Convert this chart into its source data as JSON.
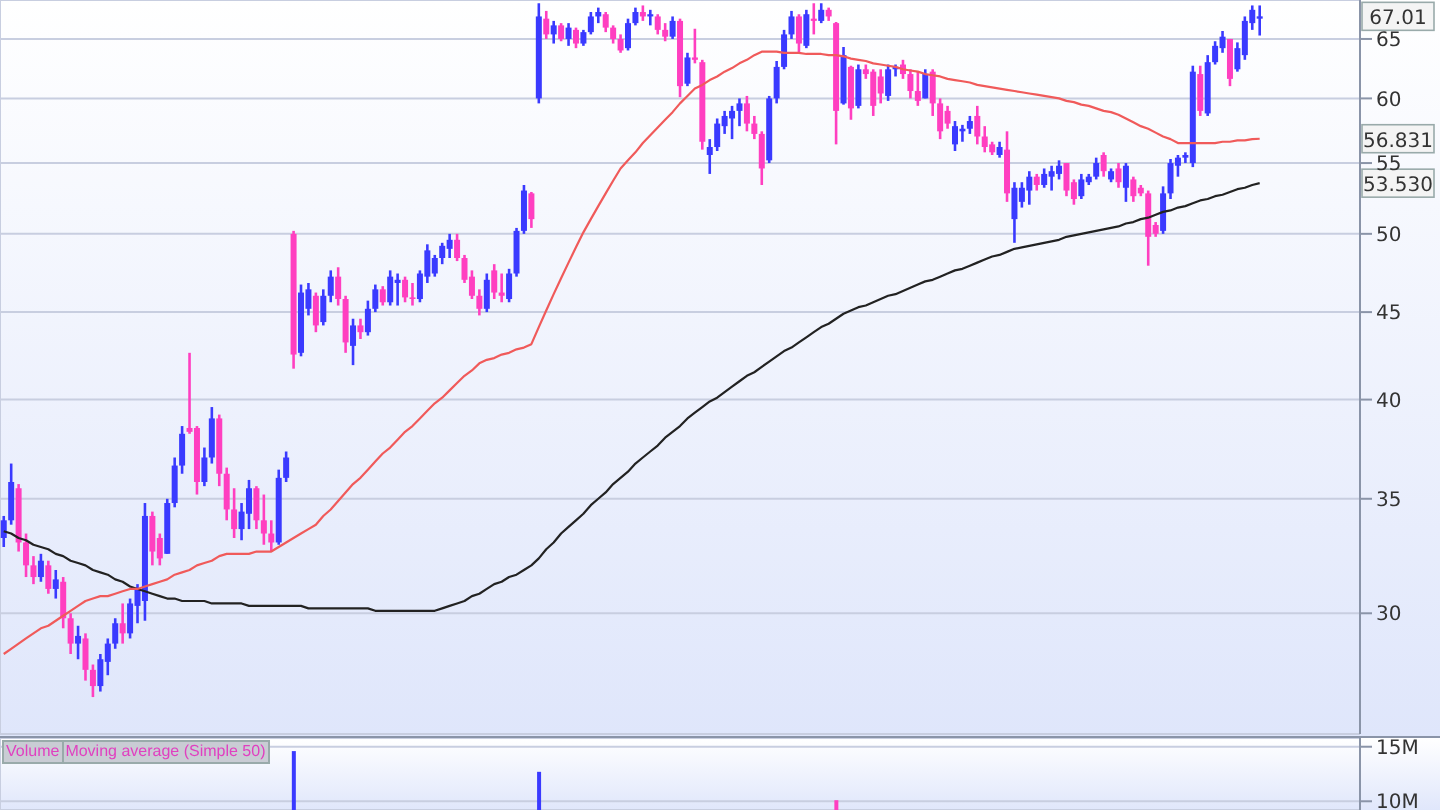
{
  "chart_data": [
    {
      "type": "candlestick",
      "categories": [
        null,
        null,
        null,
        null,
        null,
        null,
        null,
        null,
        null,
        null,
        null,
        null,
        null,
        null,
        null,
        null,
        null,
        null,
        null,
        null,
        null,
        null,
        null,
        null,
        null,
        null,
        null,
        null,
        null,
        null,
        null,
        null,
        null,
        null,
        null,
        null,
        null,
        null,
        null,
        null,
        null,
        null,
        null,
        null,
        null,
        null,
        null,
        null,
        null,
        null,
        null,
        null,
        null,
        null,
        null,
        null,
        null,
        null,
        null,
        null,
        null,
        null,
        null,
        null,
        null,
        null,
        null,
        null,
        null,
        null,
        null,
        null,
        null,
        null,
        null,
        null,
        null,
        null,
        null,
        null,
        null,
        null,
        null,
        null,
        null,
        null,
        null,
        null,
        null,
        null,
        null,
        null,
        null,
        null,
        null,
        null,
        null,
        null,
        null,
        null,
        null,
        null,
        null,
        null,
        null,
        null,
        null,
        null,
        null,
        null,
        null,
        null,
        null,
        null,
        null,
        null,
        null,
        null,
        null,
        null,
        null,
        null,
        null,
        null,
        null,
        null,
        null,
        null,
        null,
        null,
        null,
        null,
        null,
        null,
        null,
        null,
        null,
        null,
        null,
        null,
        null,
        null,
        null,
        null,
        null,
        null,
        null,
        null,
        null,
        null,
        null,
        null,
        null,
        null,
        null,
        null,
        null,
        null,
        null,
        null,
        null,
        null,
        null,
        null,
        null,
        null,
        null,
        null,
        null,
        null,
        null,
        null,
        null,
        null,
        null,
        null,
        null,
        null,
        null,
        null,
        null,
        null,
        null
      ],
      "ohlc": [
        [
          33.2,
          34.2,
          32.8,
          34.0
        ],
        [
          34.0,
          36.7,
          33.8,
          35.8
        ],
        [
          35.5,
          35.7,
          32.6,
          33.0
        ],
        [
          33.0,
          33.4,
          31.5,
          32.0
        ],
        [
          32.0,
          32.4,
          31.2,
          31.5
        ],
        [
          31.5,
          32.5,
          31.3,
          32.2
        ],
        [
          32.0,
          32.2,
          30.8,
          31.0
        ],
        [
          31.0,
          31.8,
          30.6,
          31.4
        ],
        [
          31.3,
          31.5,
          29.4,
          29.8
        ],
        [
          29.8,
          30.0,
          28.4,
          28.8
        ],
        [
          28.8,
          29.5,
          28.2,
          29.1
        ],
        [
          29.0,
          29.2,
          27.4,
          27.8
        ],
        [
          27.8,
          28.0,
          26.8,
          27.2
        ],
        [
          27.2,
          28.4,
          27.0,
          28.2
        ],
        [
          28.1,
          29.0,
          27.6,
          28.8
        ],
        [
          28.8,
          29.8,
          28.6,
          29.6
        ],
        [
          29.6,
          30.4,
          28.8,
          29.2
        ],
        [
          29.2,
          30.6,
          29.0,
          30.4
        ],
        [
          30.3,
          31.2,
          29.6,
          31.0
        ],
        [
          30.5,
          34.8,
          29.7,
          34.2
        ],
        [
          34.2,
          34.4,
          32.0,
          32.6
        ],
        [
          33.2,
          33.4,
          32.0,
          32.3
        ],
        [
          32.5,
          35.0,
          32.5,
          34.8
        ],
        [
          34.8,
          37.0,
          34.6,
          36.6
        ],
        [
          36.6,
          38.6,
          36.2,
          38.2
        ],
        [
          38.5,
          42.6,
          38.2,
          38.3
        ],
        [
          38.5,
          38.6,
          35.2,
          35.8
        ],
        [
          35.8,
          37.5,
          35.6,
          37.0
        ],
        [
          37.0,
          39.6,
          36.7,
          39.0
        ],
        [
          39.0,
          39.2,
          35.6,
          36.2
        ],
        [
          36.2,
          36.5,
          34.0,
          34.5
        ],
        [
          34.5,
          35.5,
          33.2,
          33.6
        ],
        [
          33.6,
          34.8,
          33.1,
          34.4
        ],
        [
          34.3,
          35.9,
          33.6,
          35.5
        ],
        [
          35.5,
          35.6,
          33.6,
          34.0
        ],
        [
          34.0,
          35.2,
          32.9,
          33.4
        ],
        [
          33.4,
          34.0,
          32.6,
          33.0
        ],
        [
          33.0,
          36.4,
          32.9,
          36.0
        ],
        [
          36.0,
          37.3,
          35.8,
          37.0
        ],
        [
          50.0,
          50.2,
          41.7,
          42.5
        ],
        [
          42.6,
          46.7,
          42.4,
          46.2
        ],
        [
          45.2,
          46.8,
          44.8,
          46.4
        ],
        [
          46.0,
          46.2,
          43.8,
          44.2
        ],
        [
          44.4,
          46.4,
          44.2,
          46.0
        ],
        [
          46.0,
          47.6,
          45.6,
          47.2
        ],
        [
          47.2,
          47.8,
          45.4,
          45.8
        ],
        [
          45.8,
          46.0,
          42.6,
          43.2
        ],
        [
          43.0,
          44.6,
          41.9,
          44.2
        ],
        [
          44.2,
          44.6,
          43.4,
          43.8
        ],
        [
          43.8,
          45.7,
          43.6,
          45.2
        ],
        [
          45.2,
          46.7,
          45.0,
          46.4
        ],
        [
          46.4,
          46.6,
          45.4,
          45.6
        ],
        [
          45.6,
          47.6,
          45.4,
          47.2
        ],
        [
          46.8,
          47.4,
          45.4,
          47.0
        ],
        [
          47.0,
          47.2,
          45.6,
          45.9
        ],
        [
          45.9,
          46.8,
          45.4,
          45.8
        ],
        [
          45.8,
          47.6,
          45.6,
          47.4
        ],
        [
          47.2,
          49.3,
          46.8,
          48.9
        ],
        [
          47.4,
          48.6,
          47.2,
          48.4
        ],
        [
          48.4,
          49.4,
          48.0,
          49.2
        ],
        [
          49.0,
          50.0,
          48.4,
          49.6
        ],
        [
          49.6,
          50.0,
          48.2,
          48.4
        ],
        [
          48.4,
          48.6,
          46.8,
          47.0
        ],
        [
          47.2,
          47.6,
          45.8,
          46.0
        ],
        [
          46.0,
          46.4,
          44.8,
          45.2
        ],
        [
          45.2,
          47.4,
          45.0,
          47.0
        ],
        [
          47.6,
          48.0,
          45.8,
          46.2
        ],
        [
          46.2,
          47.4,
          45.6,
          46.0
        ],
        [
          45.8,
          47.7,
          45.6,
          47.4
        ],
        [
          47.4,
          50.4,
          47.2,
          50.2
        ],
        [
          50.2,
          53.4,
          50.0,
          53.0
        ],
        [
          52.8,
          52.9,
          50.4,
          51.0
        ],
        [
          60.0,
          68.2,
          59.6,
          67.0
        ],
        [
          66.8,
          67.5,
          65.0,
          65.4
        ],
        [
          65.4,
          66.6,
          64.6,
          66.2
        ],
        [
          66.2,
          66.4,
          64.8,
          65.0
        ],
        [
          65.0,
          66.4,
          64.4,
          66.0
        ],
        [
          65.8,
          66.0,
          64.2,
          64.6
        ],
        [
          64.6,
          65.8,
          64.4,
          65.6
        ],
        [
          65.6,
          67.4,
          65.4,
          67.0
        ],
        [
          67.0,
          67.8,
          66.4,
          67.4
        ],
        [
          67.2,
          67.4,
          65.6,
          66.0
        ],
        [
          66.0,
          66.2,
          64.6,
          65.0
        ],
        [
          65.0,
          65.4,
          63.8,
          64.0
        ],
        [
          64.2,
          66.8,
          64.0,
          66.4
        ],
        [
          66.4,
          67.8,
          66.2,
          67.4
        ],
        [
          67.4,
          68.0,
          66.6,
          67.0
        ],
        [
          67.0,
          67.6,
          66.2,
          67.2
        ],
        [
          67.0,
          67.2,
          65.4,
          65.8
        ],
        [
          65.8,
          66.4,
          64.8,
          65.2
        ],
        [
          65.2,
          67.0,
          65.0,
          66.6
        ],
        [
          66.6,
          66.8,
          60.1,
          61.0
        ],
        [
          61.2,
          63.8,
          61.0,
          63.4
        ],
        [
          63.4,
          65.9,
          62.9,
          63.2
        ],
        [
          63.0,
          63.2,
          56.0,
          56.6
        ],
        [
          55.6,
          56.8,
          54.2,
          56.2
        ],
        [
          56.2,
          58.4,
          55.9,
          58.0
        ],
        [
          57.8,
          59.0,
          57.2,
          58.6
        ],
        [
          58.4,
          59.4,
          56.8,
          59.0
        ],
        [
          59.0,
          60.0,
          57.8,
          59.6
        ],
        [
          59.6,
          60.2,
          57.4,
          58.0
        ],
        [
          58.0,
          58.6,
          56.8,
          57.2
        ],
        [
          57.2,
          57.4,
          53.4,
          54.6
        ],
        [
          55.2,
          60.2,
          55.0,
          60.0
        ],
        [
          60.0,
          63.1,
          59.6,
          62.6
        ],
        [
          62.6,
          65.8,
          62.4,
          65.4
        ],
        [
          65.4,
          67.5,
          65.0,
          67.0
        ],
        [
          67.0,
          67.2,
          63.8,
          64.6
        ],
        [
          64.4,
          67.6,
          64.2,
          67.2
        ],
        [
          66.8,
          68.2,
          65.4,
          66.6
        ],
        [
          66.6,
          68.2,
          66.4,
          67.6
        ],
        [
          67.6,
          67.8,
          66.6,
          67.0
        ],
        [
          66.4,
          66.5,
          56.4,
          59.0
        ],
        [
          59.6,
          64.3,
          59.5,
          63.6
        ],
        [
          62.6,
          62.7,
          58.3,
          59.2
        ],
        [
          59.4,
          62.8,
          59.2,
          62.4
        ],
        [
          62.4,
          62.8,
          61.6,
          62.0
        ],
        [
          62.2,
          62.4,
          58.6,
          59.4
        ],
        [
          61.8,
          62.4,
          59.6,
          60.4
        ],
        [
          60.2,
          62.8,
          59.8,
          62.4
        ],
        [
          62.4,
          62.8,
          61.8,
          62.6
        ],
        [
          62.8,
          63.2,
          61.6,
          62.0
        ],
        [
          62.0,
          62.4,
          60.0,
          60.6
        ],
        [
          60.6,
          62.2,
          59.4,
          59.8
        ],
        [
          60.0,
          62.4,
          60.0,
          62.0
        ],
        [
          62.2,
          62.4,
          58.6,
          59.6
        ],
        [
          59.6,
          60.0,
          56.8,
          57.4
        ],
        [
          59.0,
          59.4,
          57.6,
          58.0
        ],
        [
          56.4,
          58.2,
          55.9,
          57.8
        ],
        [
          57.4,
          57.9,
          56.6,
          57.6
        ],
        [
          57.6,
          58.6,
          57.2,
          58.2
        ],
        [
          58.6,
          59.4,
          56.4,
          57.0
        ],
        [
          57.0,
          57.8,
          55.8,
          56.2
        ],
        [
          56.4,
          56.6,
          55.6,
          55.8
        ],
        [
          55.6,
          56.6,
          55.4,
          56.2
        ],
        [
          56.0,
          57.4,
          52.2,
          52.8
        ],
        [
          51.0,
          53.6,
          49.4,
          53.2
        ],
        [
          52.2,
          53.6,
          51.8,
          53.2
        ],
        [
          53.0,
          54.4,
          52.0,
          54.0
        ],
        [
          54.0,
          54.2,
          53.0,
          53.4
        ],
        [
          53.4,
          54.6,
          53.2,
          54.2
        ],
        [
          54.0,
          54.8,
          53.0,
          54.4
        ],
        [
          54.2,
          55.2,
          53.8,
          54.8
        ],
        [
          55.0,
          55.0,
          52.6,
          53.0
        ],
        [
          53.6,
          53.8,
          52.0,
          52.4
        ],
        [
          52.6,
          54.2,
          52.4,
          53.8
        ],
        [
          53.6,
          54.2,
          53.4,
          54.0
        ],
        [
          54.0,
          55.4,
          53.8,
          55.0
        ],
        [
          55.6,
          55.8,
          54.0,
          54.4
        ],
        [
          53.8,
          54.6,
          53.6,
          54.4
        ],
        [
          54.6,
          55.0,
          53.2,
          53.6
        ],
        [
          53.2,
          55.0,
          52.2,
          54.8
        ],
        [
          53.8,
          54.0,
          52.2,
          52.6
        ],
        [
          53.2,
          53.4,
          52.6,
          52.8
        ],
        [
          52.8,
          53.0,
          47.9,
          49.8
        ],
        [
          50.6,
          50.8,
          49.8,
          50.0
        ],
        [
          50.2,
          53.3,
          50.0,
          52.8
        ],
        [
          52.8,
          55.3,
          52.4,
          55.0
        ],
        [
          54.8,
          55.6,
          54.0,
          55.4
        ],
        [
          55.4,
          55.8,
          55.0,
          55.6
        ],
        [
          55.0,
          62.7,
          54.7,
          62.2
        ],
        [
          62.0,
          62.7,
          58.6,
          59.0
        ],
        [
          58.8,
          63.6,
          58.6,
          63.0
        ],
        [
          63.0,
          64.8,
          62.8,
          64.4
        ],
        [
          64.2,
          65.7,
          63.8,
          65.2
        ],
        [
          65.0,
          65.0,
          61.0,
          61.6
        ],
        [
          62.4,
          64.7,
          62.2,
          64.2
        ],
        [
          63.6,
          67.0,
          63.2,
          66.6
        ],
        [
          66.4,
          68.0,
          65.8,
          67.6
        ],
        [
          66.8,
          68.0,
          65.3,
          67.01
        ],
        null,
        null,
        null,
        null,
        null,
        null,
        null,
        null,
        null,
        null,
        null,
        null,
        null
      ],
      "colors": [
        "#3a3aff",
        "#3a3aff",
        "#ff3fc0",
        "#ff3fc0",
        "#ff3fc0",
        "#3a3aff",
        "#ff3fc0",
        "#3a3aff",
        "#ff3fc0",
        "#ff3fc0",
        "#3a3aff",
        "#ff3fc0",
        "#ff3fc0",
        "#3a3aff",
        "#3a3aff",
        "#3a3aff",
        "#ff3fc0",
        "#3a3aff",
        "#3a3aff",
        "#3a3aff",
        "#ff3fc0",
        "#ff3fc0",
        "#3a3aff",
        "#3a3aff",
        "#3a3aff",
        "#ff3fc0",
        "#ff3fc0",
        "#3a3aff",
        "#3a3aff",
        "#ff3fc0",
        "#ff3fc0",
        "#ff3fc0",
        "#3a3aff",
        "#3a3aff",
        "#ff3fc0",
        "#ff3fc0",
        "#ff3fc0",
        "#3a3aff",
        "#3a3aff",
        "#ff3fc0",
        "#3a3aff",
        "#3a3aff",
        "#ff3fc0",
        "#3a3aff",
        "#3a3aff",
        "#ff3fc0",
        "#ff3fc0",
        "#3a3aff",
        "#ff3fc0",
        "#3a3aff",
        "#3a3aff",
        "#ff3fc0",
        "#3a3aff",
        "#3a3aff",
        "#ff3fc0",
        "#ff3fc0",
        "#3a3aff",
        "#3a3aff",
        "#3a3aff",
        "#3a3aff",
        "#3a3aff",
        "#ff3fc0",
        "#ff3fc0",
        "#ff3fc0",
        "#ff3fc0",
        "#3a3aff",
        "#ff3fc0",
        "#ff3fc0",
        "#3a3aff",
        "#3a3aff",
        "#3a3aff",
        "#ff3fc0",
        "#3a3aff",
        "#ff3fc0",
        "#3a3aff",
        "#ff3fc0",
        "#3a3aff",
        "#ff3fc0",
        "#3a3aff",
        "#3a3aff",
        "#3a3aff",
        "#ff3fc0",
        "#ff3fc0",
        "#ff3fc0",
        "#3a3aff",
        "#3a3aff",
        "#ff3fc0",
        "#3a3aff",
        "#ff3fc0",
        "#ff3fc0",
        "#3a3aff",
        "#ff3fc0",
        "#3a3aff",
        "#ff3fc0",
        "#ff3fc0",
        "#3a3aff",
        "#3a3aff",
        "#3a3aff",
        "#3a3aff",
        "#3a3aff",
        "#ff3fc0",
        "#ff3fc0",
        "#ff3fc0",
        "#3a3aff",
        "#3a3aff",
        "#3a3aff",
        "#3a3aff",
        "#ff3fc0",
        "#3a3aff",
        "#ff3fc0",
        "#3a3aff",
        "#ff3fc0",
        "#ff3fc0",
        "#3a3aff",
        "#ff3fc0",
        "#3a3aff",
        "#ff3fc0",
        "#ff3fc0",
        "#ff3fc0",
        "#3a3aff",
        "#3a3aff",
        "#ff3fc0",
        "#ff3fc0",
        "#ff3fc0",
        "#3a3aff",
        "#ff3fc0",
        "#ff3fc0",
        "#ff3fc0",
        "#3a3aff",
        "#3a3aff",
        "#3a3aff",
        "#ff3fc0",
        "#ff3fc0",
        "#ff3fc0",
        "#3a3aff",
        "#ff3fc0",
        "#3a3aff",
        "#3a3aff",
        "#3a3aff",
        "#ff3fc0",
        "#3a3aff",
        "#3a3aff",
        "#3a3aff",
        "#ff3fc0",
        "#ff3fc0",
        "#3a3aff",
        "#3a3aff",
        "#3a3aff",
        "#ff3fc0",
        "#3a3aff",
        "#ff3fc0",
        "#3a3aff",
        "#ff3fc0",
        "#ff3fc0",
        "#ff3fc0",
        "#ff3fc0",
        "#3a3aff",
        "#3a3aff",
        "#3a3aff",
        "#3a3aff",
        "#3a3aff",
        "#ff3fc0",
        "#3a3aff",
        "#3a3aff",
        "#3a3aff",
        "#ff3fc0",
        "#3a3aff",
        "#3a3aff",
        "#3a3aff",
        "#3a3aff",
        null,
        null,
        null,
        null,
        null,
        null,
        null,
        null,
        null,
        null,
        null,
        null,
        null
      ],
      "series": [
        {
          "type": "line",
          "color": "#222222",
          "values": [
            33.5,
            33.4,
            33.2,
            33.1,
            32.9,
            32.8,
            32.7,
            32.5,
            32.4,
            32.2,
            32.1,
            32.0,
            31.8,
            31.7,
            31.6,
            31.4,
            31.3,
            31.1,
            31.0,
            30.9,
            30.8,
            30.7,
            30.6,
            30.6,
            30.5,
            30.5,
            30.5,
            30.5,
            30.4,
            30.4,
            30.4,
            30.4,
            30.4,
            30.3,
            30.3,
            30.3,
            30.3,
            30.3,
            30.3,
            30.3,
            30.3,
            30.2,
            30.2,
            30.2,
            30.2,
            30.2,
            30.2,
            30.2,
            30.2,
            30.2,
            30.1,
            30.1,
            30.1,
            30.1,
            30.1,
            30.1,
            30.1,
            30.1,
            30.1,
            30.2,
            30.3,
            30.4,
            30.5,
            30.7,
            30.8,
            31.0,
            31.2,
            31.3,
            31.5,
            31.6,
            31.8,
            32.0,
            32.3,
            32.7,
            33.0,
            33.4,
            33.7,
            34.0,
            34.3,
            34.7,
            35.0,
            35.3,
            35.7,
            36.0,
            36.3,
            36.7,
            37.0,
            37.3,
            37.6,
            38.0,
            38.3,
            38.6,
            39.0,
            39.3,
            39.6,
            39.9,
            40.1,
            40.4,
            40.7,
            41.0,
            41.3,
            41.5,
            41.8,
            42.1,
            42.4,
            42.7,
            42.9,
            43.2,
            43.5,
            43.8,
            44.1,
            44.3,
            44.6,
            44.9,
            45.1,
            45.3,
            45.4,
            45.6,
            45.8,
            46.0,
            46.1,
            46.3,
            46.5,
            46.7,
            46.9,
            47.0,
            47.2,
            47.4,
            47.6,
            47.7,
            47.9,
            48.1,
            48.3,
            48.5,
            48.6,
            48.8,
            49.0,
            49.1,
            49.2,
            49.3,
            49.4,
            49.5,
            49.6,
            49.8,
            49.9,
            50.0,
            50.1,
            50.2,
            50.3,
            50.4,
            50.5,
            50.7,
            50.8,
            51.0,
            51.1,
            51.3,
            51.5,
            51.6,
            51.8,
            51.9,
            52.1,
            52.3,
            52.4,
            52.6,
            52.7,
            52.9,
            53.1,
            53.2,
            53.4,
            53.53,
            null,
            null,
            null,
            null,
            null,
            null,
            null,
            null,
            null,
            null,
            null,
            null,
            null
          ]
        },
        {
          "type": "line",
          "color": "#f05a5a",
          "values": [
            28.4,
            28.6,
            28.8,
            29.0,
            29.2,
            29.4,
            29.5,
            29.7,
            29.9,
            30.1,
            30.3,
            30.5,
            30.6,
            30.7,
            30.7,
            30.8,
            30.9,
            31.0,
            31.0,
            31.1,
            31.2,
            31.3,
            31.4,
            31.6,
            31.7,
            31.8,
            32.0,
            32.1,
            32.2,
            32.4,
            32.5,
            32.5,
            32.5,
            32.5,
            32.6,
            32.6,
            32.6,
            32.8,
            33.0,
            33.2,
            33.4,
            33.6,
            33.8,
            34.2,
            34.5,
            34.9,
            35.3,
            35.7,
            36.0,
            36.4,
            36.8,
            37.2,
            37.5,
            37.9,
            38.3,
            38.6,
            39.0,
            39.4,
            39.8,
            40.1,
            40.5,
            40.9,
            41.3,
            41.6,
            42.0,
            42.2,
            42.3,
            42.5,
            42.6,
            42.8,
            42.9,
            43.1,
            44.1,
            45.1,
            46.1,
            47.1,
            48.1,
            49.1,
            50.1,
            51.0,
            51.9,
            52.8,
            53.7,
            54.6,
            55.2,
            55.8,
            56.5,
            57.1,
            57.7,
            58.3,
            58.9,
            59.6,
            60.2,
            60.8,
            61.1,
            61.5,
            61.8,
            62.2,
            62.5,
            62.9,
            63.2,
            63.6,
            63.9,
            63.9,
            63.9,
            63.8,
            63.8,
            63.8,
            63.7,
            63.7,
            63.7,
            63.6,
            63.6,
            63.5,
            63.3,
            63.2,
            63.1,
            62.9,
            62.8,
            62.7,
            62.6,
            62.4,
            62.3,
            62.2,
            62.0,
            61.9,
            61.8,
            61.6,
            61.5,
            61.4,
            61.3,
            61.1,
            61.0,
            60.9,
            60.8,
            60.7,
            60.6,
            60.5,
            60.4,
            60.3,
            60.2,
            60.1,
            60.0,
            59.8,
            59.7,
            59.5,
            59.4,
            59.2,
            59.0,
            58.9,
            58.7,
            58.4,
            58.1,
            57.8,
            57.6,
            57.3,
            57.0,
            56.8,
            56.5,
            56.5,
            56.5,
            56.5,
            56.5,
            56.5,
            56.6,
            56.6,
            56.7,
            56.7,
            56.8,
            56.83,
            null,
            null,
            null,
            null,
            null,
            null,
            null,
            null,
            null,
            null,
            null,
            null,
            null
          ]
        }
      ],
      "log": true,
      "ylim": [
        25.5,
        68.5
      ],
      "yticks": [
        30,
        35,
        40,
        45,
        50,
        55,
        60,
        65
      ],
      "grid": true,
      "annotations": [
        {
          "text": "67.01",
          "y": 67.01
        },
        {
          "text": "56.831",
          "y": 56.831
        },
        {
          "text": "53.530",
          "y": 53.53
        }
      ]
    },
    {
      "type": "bar",
      "categories": [
        null,
        null,
        null,
        null,
        null,
        null,
        null,
        null,
        null,
        null,
        null,
        null,
        null,
        null,
        null,
        null,
        null,
        null,
        null,
        null,
        null,
        null,
        null,
        null,
        null,
        null,
        null,
        null,
        null,
        null,
        null,
        null,
        null,
        null,
        null,
        null,
        null,
        null,
        null,
        null,
        null,
        null,
        null,
        null,
        null,
        null,
        null,
        null,
        null,
        null,
        null,
        null,
        null,
        null,
        null,
        null,
        null,
        null,
        null,
        null,
        null,
        null,
        null,
        null,
        null,
        null,
        null,
        null,
        null,
        null,
        null,
        null,
        null,
        null,
        null,
        null,
        null,
        null,
        null,
        null,
        null,
        null,
        null,
        null,
        null,
        null,
        null,
        null,
        null,
        null,
        null,
        null,
        null,
        null,
        null,
        null,
        null,
        null,
        null,
        null,
        null,
        null,
        null,
        null,
        null,
        null,
        null,
        null,
        null,
        null,
        null,
        null,
        null,
        null,
        null,
        null,
        null,
        null,
        null,
        null,
        null,
        null,
        null,
        null,
        null,
        null,
        null,
        null,
        null,
        null,
        null,
        null,
        null,
        null,
        null,
        null,
        null,
        null,
        null,
        null,
        null,
        null,
        null,
        null,
        null,
        null,
        null,
        null,
        null,
        null,
        null,
        null,
        null,
        null,
        null,
        null,
        null,
        null,
        null,
        null,
        null,
        null,
        null,
        null,
        null,
        null,
        null,
        null,
        null,
        null,
        null,
        null,
        null,
        null,
        null,
        null,
        null,
        null,
        null,
        null,
        null,
        null,
        null
      ],
      "series": [
        {
          "name": "Volume",
          "values": [
            null,
            null,
            null,
            null,
            null,
            null,
            null,
            null,
            null,
            null,
            null,
            null,
            null,
            null,
            null,
            null,
            null,
            null,
            null,
            null,
            null,
            null,
            null,
            null,
            null,
            null,
            null,
            null,
            null,
            null,
            null,
            null,
            null,
            null,
            null,
            null,
            null,
            null,
            null,
            14600000,
            null,
            null,
            null,
            null,
            null,
            null,
            null,
            null,
            null,
            null,
            null,
            null,
            null,
            null,
            null,
            null,
            null,
            null,
            null,
            null,
            null,
            null,
            null,
            null,
            null,
            null,
            null,
            null,
            null,
            null,
            null,
            null,
            12700000,
            null,
            null,
            null,
            null,
            null,
            null,
            null,
            null,
            null,
            null,
            null,
            null,
            null,
            null,
            null,
            null,
            null,
            null,
            null,
            null,
            null,
            null,
            null,
            null,
            null,
            null,
            null,
            null,
            null,
            null,
            null,
            null,
            null,
            null,
            null,
            null,
            null,
            null,
            null,
            10100000,
            null,
            null,
            null,
            null,
            null,
            null,
            null,
            null,
            null,
            null,
            null,
            null,
            null,
            null,
            null,
            null,
            null,
            null,
            null,
            null,
            null,
            null,
            null,
            null,
            null,
            null,
            null,
            null,
            null,
            null,
            null,
            null,
            null,
            null,
            null,
            null,
            null,
            null,
            null,
            null,
            null,
            null,
            null,
            null,
            null,
            null,
            null,
            null,
            null,
            null,
            null,
            null,
            null,
            null,
            null,
            null,
            null,
            null,
            null,
            null,
            null,
            null,
            null,
            null,
            null,
            null,
            null,
            null,
            null,
            null
          ],
          "colors": [
            null,
            null,
            null,
            null,
            null,
            null,
            null,
            null,
            null,
            null,
            null,
            null,
            null,
            null,
            null,
            null,
            null,
            null,
            null,
            null,
            null,
            null,
            null,
            null,
            null,
            null,
            null,
            null,
            null,
            null,
            null,
            null,
            null,
            null,
            null,
            null,
            null,
            null,
            null,
            "#3a3aff",
            null,
            null,
            null,
            null,
            null,
            null,
            null,
            null,
            null,
            null,
            null,
            null,
            null,
            null,
            null,
            null,
            null,
            null,
            null,
            null,
            null,
            null,
            null,
            null,
            null,
            null,
            null,
            null,
            null,
            null,
            null,
            null,
            "#3a3aff",
            null,
            null,
            null,
            null,
            null,
            null,
            null,
            null,
            null,
            null,
            null,
            null,
            null,
            null,
            null,
            null,
            null,
            null,
            null,
            null,
            null,
            null,
            null,
            null,
            null,
            null,
            null,
            null,
            null,
            null,
            null,
            null,
            null,
            null,
            null,
            null,
            null,
            null,
            null,
            "#ff3fc0",
            null,
            null,
            null,
            null,
            null,
            null,
            null,
            null,
            null,
            null,
            null,
            null,
            null,
            null,
            null,
            null,
            null,
            null,
            null,
            null,
            null,
            null,
            null,
            null,
            null,
            null,
            null,
            null,
            null,
            null,
            null,
            null,
            null,
            null,
            null,
            null,
            null,
            null,
            null,
            null,
            null,
            null,
            null,
            null,
            null,
            null,
            null,
            null,
            null,
            null,
            null,
            null,
            null,
            null,
            null,
            null,
            null,
            null,
            null,
            null,
            null,
            null,
            null,
            null,
            null,
            null,
            null,
            null,
            null,
            null
          ]
        }
      ],
      "ylim": [
        9200000,
        15800000
      ],
      "yticks": [
        {
          "value": 15000000,
          "label": "15M"
        },
        {
          "value": 10000000,
          "label": "10M"
        }
      ],
      "grid": true,
      "legend": "top left",
      "annotations": [
        "Moving average (Simple 50)"
      ]
    }
  ]
}
